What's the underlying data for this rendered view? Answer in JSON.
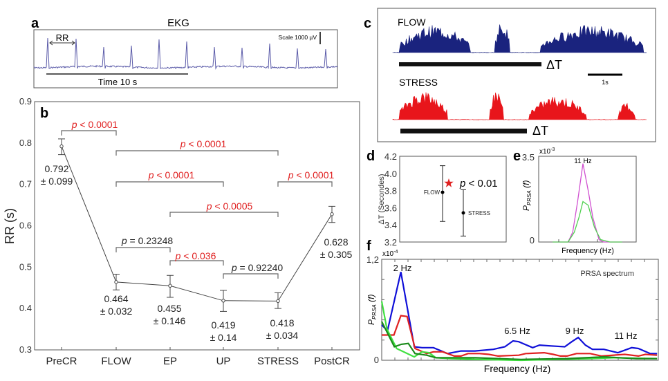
{
  "panel_labels": {
    "a": "a",
    "b": "b",
    "c": "c",
    "d": "d",
    "e": "e",
    "f": "f"
  },
  "ekg": {
    "title": "EKG",
    "rr_label": "RR",
    "scale_label": "Scale 1000 µV",
    "time_label": "Time 10 s",
    "color": "#5a5aa8"
  },
  "chart_data": [
    {
      "id": "b",
      "type": "line",
      "title": "",
      "xlabel": "",
      "ylabel": "RR (s)",
      "ylim": [
        0.3,
        0.9
      ],
      "yticks": [
        "0.3",
        "0.4",
        "0.5",
        "0.6",
        "0.7",
        "0.8",
        "0.9"
      ],
      "categories": [
        "PreCR",
        "FLOW",
        "EP",
        "UP",
        "STRESS",
        "PostCR"
      ],
      "values": [
        0.792,
        0.464,
        0.455,
        0.419,
        0.418,
        0.628
      ],
      "error_range": [
        [
          0.772,
          0.81
        ],
        [
          0.445,
          0.483
        ],
        [
          0.427,
          0.48
        ],
        [
          0.393,
          0.444
        ],
        [
          0.4,
          0.438
        ],
        [
          0.608,
          0.647
        ]
      ],
      "value_labels": [
        [
          "0.792",
          "± 0.099"
        ],
        [
          "0.464",
          "± 0.032"
        ],
        [
          "0.455",
          "± 0.146"
        ],
        [
          "0.419",
          "± 0.14"
        ],
        [
          "0.418",
          "± 0.034"
        ],
        [
          "0.628",
          "± 0.305"
        ]
      ],
      "p_symbol": "p",
      "comparisons": [
        {
          "from": "PreCR",
          "to": "FLOW",
          "label": " < 0.0001",
          "significant": true
        },
        {
          "from": "FLOW",
          "to": "STRESS",
          "label": " < 0.0001",
          "significant": true
        },
        {
          "from": "FLOW",
          "to": "UP",
          "label": " < 0.0001",
          "significant": true
        },
        {
          "from": "STRESS",
          "to": "PostCR",
          "label": " < 0.0001",
          "significant": true
        },
        {
          "from": "EP",
          "to": "STRESS",
          "label": " < 0.0005",
          "significant": true
        },
        {
          "from": "FLOW",
          "to": "EP",
          "label": " = 0.23248",
          "significant": false
        },
        {
          "from": "EP",
          "to": "UP",
          "label": " < 0.036",
          "significant": true
        },
        {
          "from": "UP",
          "to": "STRESS",
          "label": " = 0.92240",
          "significant": false
        }
      ]
    },
    {
      "id": "c",
      "type": "area",
      "traces": [
        {
          "name": "FLOW",
          "color": "#1a237e",
          "delta_label": "ΔT"
        },
        {
          "name": "STRESS",
          "color": "#e8151b",
          "delta_label": "ΔT"
        }
      ],
      "scale_label": "1s"
    },
    {
      "id": "d",
      "type": "scatter",
      "ylabel": "ΔT (Secondes)",
      "ylim": [
        3.2,
        4.2
      ],
      "yticks": [
        "3.2",
        "3.4",
        "3.6",
        "3.8",
        "4.0",
        "4.2"
      ],
      "points": [
        {
          "name": "FLOW",
          "y": 3.78,
          "error_range": [
            3.44,
            4.09
          ]
        },
        {
          "name": "STRESS",
          "y": 3.54,
          "error_range": [
            3.27,
            3.81
          ]
        }
      ],
      "p_symbol": "p",
      "annotation": " < 0.01",
      "star_color": "#e02020"
    },
    {
      "id": "e",
      "type": "line",
      "exponent_base": "x10",
      "exponent": "-3",
      "ylabel_main": "P",
      "ylabel_sub": "PRSA",
      "ylabel_arg": " (f)",
      "yticks": [
        "0",
        "3.5"
      ],
      "ylim": [
        0,
        3.5
      ],
      "xlim": [
        8.1,
        14.4
      ],
      "xlabel": "Frequency (Hz)",
      "peak_label": "11 Hz",
      "series": [
        {
          "color": "#d050d0",
          "x": [
            9.0,
            10.0,
            10.3,
            10.6,
            10.96,
            11.3,
            11.6,
            12.0,
            12.3,
            13.5
          ],
          "y": [
            0,
            0,
            0.4,
            1.6,
            3.2,
            2.1,
            1.0,
            0.1,
            0,
            0
          ]
        },
        {
          "color": "#50d050",
          "x": [
            9.0,
            10.0,
            10.4,
            10.7,
            10.96,
            11.3,
            11.7,
            12.1,
            12.7,
            13.5
          ],
          "y": [
            0,
            0,
            0.4,
            1.0,
            1.65,
            1.5,
            0.6,
            0.1,
            0,
            0
          ]
        }
      ]
    },
    {
      "id": "f",
      "type": "line",
      "title": "PRSA spectrum",
      "exponent_base": "x10",
      "exponent": "-4",
      "ylabel_main": "P",
      "ylabel_sub": "PRSA",
      "ylabel_arg": " (f)",
      "yticks": [
        "0",
        "1,2"
      ],
      "ylim": [
        0,
        1.2
      ],
      "xlim": [
        1.24,
        12.36
      ],
      "xlabel": "Frequency (Hz)",
      "annotations": [
        {
          "label": "2 Hz",
          "x": 2.0
        },
        {
          "label": "6.5 Hz",
          "x": 6.5
        },
        {
          "label": "9 Hz",
          "x": 9.0
        },
        {
          "label": "11 Hz",
          "x": 11.0
        }
      ],
      "series": [
        {
          "color": "#1010d8",
          "x": [
            1.24,
            1.47,
            2.01,
            2.55,
            2.86,
            3.32,
            3.88,
            4.43,
            4.99,
            5.73,
            6.19,
            6.52,
            6.75,
            7.31,
            7.58,
            8.05,
            8.6,
            8.88,
            9.14,
            9.43,
            9.71,
            10.17,
            10.73,
            11.29,
            11.56,
            12.03,
            12.31
          ],
          "y": [
            0.42,
            0.35,
            1.05,
            0.16,
            0.15,
            0.15,
            0.08,
            0.11,
            0.11,
            0.13,
            0.16,
            0.23,
            0.22,
            0.15,
            0.18,
            0.17,
            0.16,
            0.22,
            0.27,
            0.18,
            0.13,
            0.13,
            0.09,
            0.15,
            0.14,
            0.08,
            0.08
          ]
        },
        {
          "color": "#e02020",
          "x": [
            1.24,
            1.73,
            2.01,
            2.26,
            2.58,
            3.05,
            3.32,
            3.69,
            4.16,
            4.43,
            4.71,
            5.18,
            5.55,
            5.92,
            6.75,
            7.03,
            7.77,
            8.14,
            8.42,
            8.69,
            9.07,
            9.62,
            10.08,
            11.01,
            11.56,
            11.84,
            12.31
          ],
          "y": [
            0.3,
            0.3,
            0.53,
            0.52,
            0.14,
            0.08,
            0.1,
            0.1,
            0.05,
            0.05,
            0.08,
            0.08,
            0.07,
            0.05,
            0.06,
            0.08,
            0.09,
            0.07,
            0.05,
            0.05,
            0.08,
            0.08,
            0.05,
            0.07,
            0.05,
            0.07,
            0.06
          ]
        },
        {
          "color": "#40e040",
          "x": [
            1.24,
            1.45,
            1.84,
            2.55,
            2.86,
            3.14,
            3.42,
            4.06,
            4.99,
            6.84,
            9.62,
            10.55,
            12.31
          ],
          "y": [
            0.7,
            0.37,
            0.14,
            0.04,
            0.1,
            0.09,
            0.03,
            0.02,
            0.01,
            0.0,
            0.02,
            0.03,
            0.02
          ]
        },
        {
          "color": "#1a8a1a",
          "x": [
            1.24,
            1.75,
            2.03,
            2.31,
            2.58,
            3.05,
            3.42,
            4.99,
            6.84,
            8.69,
            10.17,
            11.47,
            12.31
          ],
          "y": [
            0.46,
            0.16,
            0.19,
            0.2,
            0.08,
            0.06,
            0.03,
            0.03,
            0.01,
            0.02,
            0.04,
            0.02,
            0.02
          ]
        }
      ]
    }
  ]
}
